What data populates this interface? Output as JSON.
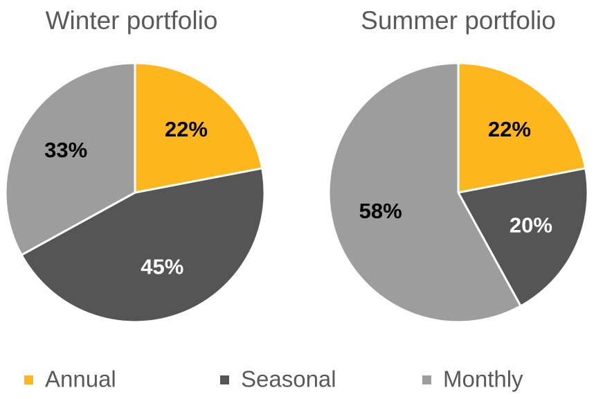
{
  "chart_data": [
    {
      "type": "pie",
      "title": "Winter portfolio",
      "categories": [
        "Annual",
        "Seasonal",
        "Monthly"
      ],
      "values": [
        22,
        45,
        33
      ],
      "value_labels": [
        "22%",
        "45%",
        "33%"
      ],
      "colors": [
        "#fdb71c",
        "#555555",
        "#9d9d9d"
      ]
    },
    {
      "type": "pie",
      "title": "Summer portfolio",
      "categories": [
        "Annual",
        "Seasonal",
        "Monthly"
      ],
      "values": [
        22,
        20,
        58
      ],
      "value_labels": [
        "22%",
        "20%",
        "58%"
      ],
      "colors": [
        "#fdb71c",
        "#555555",
        "#9d9d9d"
      ]
    }
  ]
}
